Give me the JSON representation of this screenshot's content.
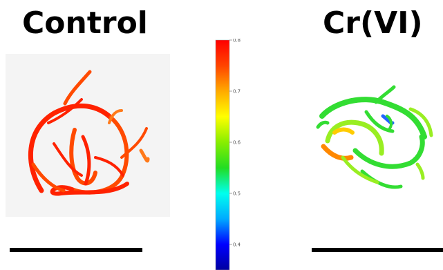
{
  "panels": [
    {
      "title": "Control",
      "dominant_colors": [
        "#ff2200",
        "#ff4a00",
        "#ff7a1a"
      ],
      "background": "#f4f4f4"
    },
    {
      "title": "Cr(VI)",
      "dominant_colors": [
        "#33dd33",
        "#99ee22",
        "#ffcc00",
        "#ff8800",
        "#2266ff"
      ],
      "background": "#ffffff"
    }
  ],
  "colorbar": {
    "min": 0.35,
    "max": 0.8,
    "ticks": [
      {
        "value": 0.8,
        "label": "0.8"
      },
      {
        "value": 0.7,
        "label": "0.7"
      },
      {
        "value": 0.6,
        "label": "0.6"
      },
      {
        "value": 0.5,
        "label": "0.5"
      },
      {
        "value": 0.4,
        "label": "0.4"
      }
    ],
    "colormap": [
      "#0000a0",
      "#0000ff",
      "#00aaff",
      "#00ffee",
      "#22dd22",
      "#88ee00",
      "#ffff00",
      "#ffaa00",
      "#ff4400",
      "#ff0000"
    ]
  }
}
